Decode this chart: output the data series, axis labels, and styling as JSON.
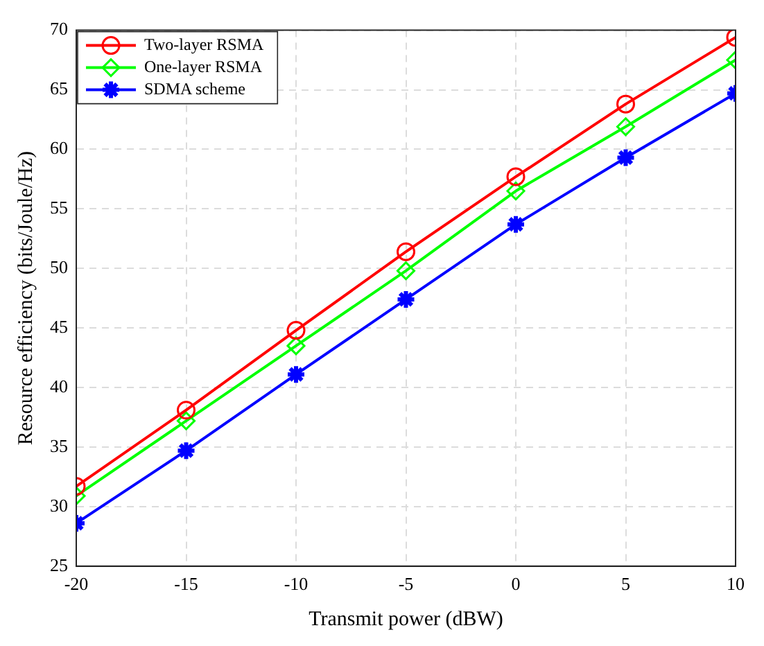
{
  "chart_data": {
    "type": "line",
    "xlabel": "Transmit power (dBW)",
    "ylabel": "Resource efficiency (bits/Joule/Hz)",
    "x": [
      -20,
      -15,
      -10,
      -5,
      0,
      5,
      10
    ],
    "series": [
      {
        "name": "Two-layer RSMA",
        "color": "#ff0000",
        "marker": "circle",
        "values": [
          31.7,
          38.1,
          44.8,
          51.4,
          57.7,
          63.8,
          69.4
        ]
      },
      {
        "name": "One-layer RSMA",
        "color": "#00ff00",
        "marker": "diamond",
        "values": [
          30.9,
          37.2,
          43.5,
          49.8,
          56.5,
          61.9,
          67.5
        ]
      },
      {
        "name": "SDMA scheme",
        "color": "#0000ff",
        "marker": "cross",
        "values": [
          28.6,
          34.7,
          41.1,
          47.4,
          53.7,
          59.3,
          64.7
        ]
      }
    ],
    "xlim": [
      -20,
      10
    ],
    "xticks": [
      -20,
      -15,
      -10,
      -5,
      0,
      5,
      10
    ],
    "ylim": [
      25,
      70
    ],
    "yticks": [
      25,
      30,
      35,
      40,
      45,
      50,
      55,
      60,
      65,
      70
    ],
    "grid": true,
    "legend": "top left",
    "line_style": "solid"
  }
}
